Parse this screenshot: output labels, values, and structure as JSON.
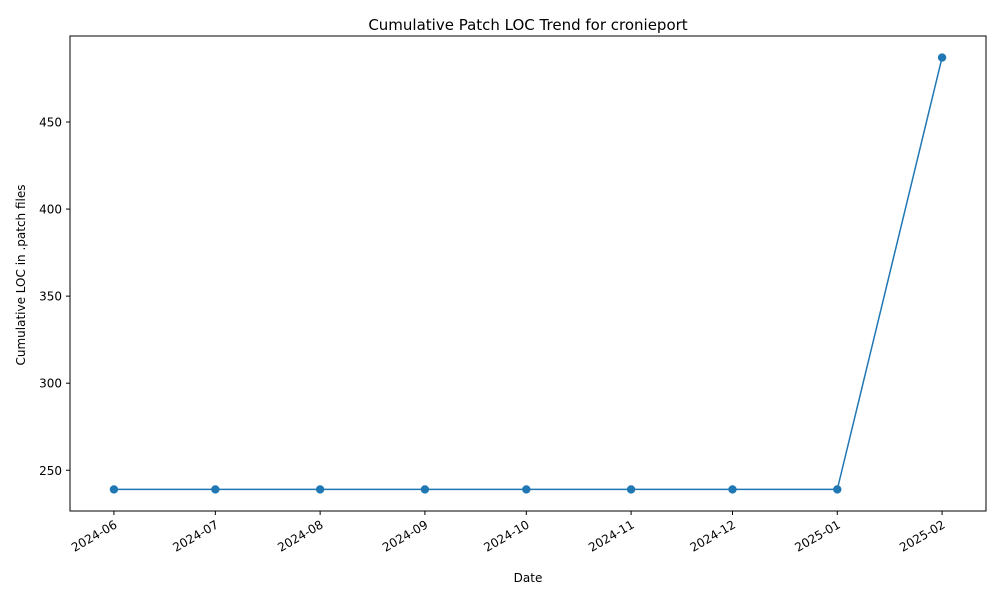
{
  "chart_data": {
    "type": "line",
    "title": "Cumulative Patch LOC Trend for cronieport",
    "xlabel": "Date",
    "ylabel": "Cumulative LOC in .patch files",
    "x": [
      "2024-06-01",
      "2024-07-01",
      "2024-08-01",
      "2024-09-01",
      "2024-10-01",
      "2024-11-01",
      "2024-12-01",
      "2025-01-01",
      "2025-02-01"
    ],
    "x_tick_labels": [
      "2024-06",
      "2024-07",
      "2024-08",
      "2024-09",
      "2024-10",
      "2024-11",
      "2024-12",
      "2025-01",
      "2025-02"
    ],
    "series": [
      {
        "values": [
          239,
          239,
          239,
          239,
          239,
          239,
          239,
          239,
          487
        ],
        "color": "#1f77b4",
        "marker": "circle"
      }
    ],
    "y_ticks": [
      250,
      300,
      350,
      400,
      450
    ],
    "ylim": [
      226.6,
      499.4
    ],
    "xlim": [
      "2024-05-19",
      "2025-02-14"
    ],
    "grid": false,
    "legend": "none"
  }
}
